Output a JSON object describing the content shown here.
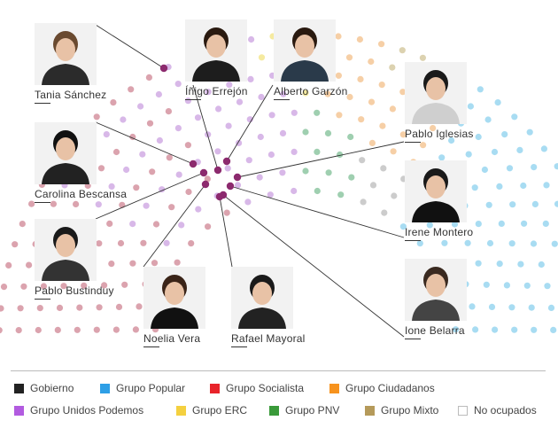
{
  "people": [
    {
      "name": "Tania Sánchez"
    },
    {
      "name": "Íñigo Errejón"
    },
    {
      "name": "Alberto Garzón"
    },
    {
      "name": "Carolina Bescansa"
    },
    {
      "name": "Pablo Iglesias"
    },
    {
      "name": "Irene Montero"
    },
    {
      "name": "Pablo Bustinduy"
    },
    {
      "name": "Noelia Vera"
    },
    {
      "name": "Rafael Mayoral"
    },
    {
      "name": "Ione Belarra"
    }
  ],
  "legend": [
    {
      "label": "Gobierno",
      "color": "#222222"
    },
    {
      "label": "Grupo Popular",
      "color": "#2e9fe6"
    },
    {
      "label": "Grupo Socialista",
      "color": "#e8232a"
    },
    {
      "label": "Grupo Ciudadanos",
      "color": "#f7931e"
    },
    {
      "label": "Grupo Unidos Podemos",
      "color": "#b25be0"
    },
    {
      "label": "Grupo ERC",
      "color": "#f4d03f"
    },
    {
      "label": "Grupo PNV",
      "color": "#3a9a3a"
    },
    {
      "label": "Grupo Mixto",
      "color": "#b59a5a"
    },
    {
      "label": "No ocupados",
      "color": "#ffffff"
    }
  ],
  "seat_colors": {
    "socialista": "#dba3ae",
    "podemos_light": "#d8b8e8",
    "podemos_highlight": "#8c2a6e",
    "popular": "#a8dcf2",
    "ciudadanos": "#f6cfa6",
    "pnv": "#9fcfb0",
    "mixto": "#dcd2b0",
    "erc": "#f5eaa0",
    "gobierno": "#cccccc",
    "empty": "#ececec"
  }
}
